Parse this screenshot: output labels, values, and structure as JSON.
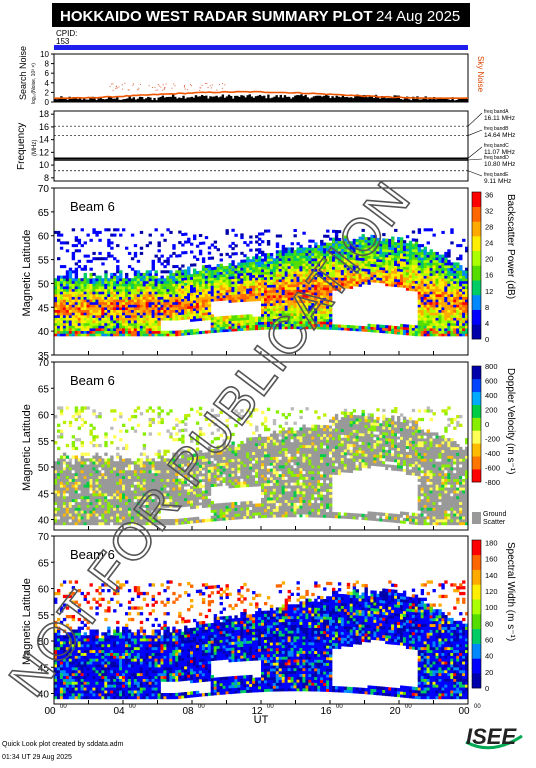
{
  "header": {
    "title": "HOKKAIDO WEST RADAR SUMMARY PLOT",
    "date": "24 Aug 2025",
    "cpid_label": "CPID:",
    "cpid_value": "153"
  },
  "noise_panel": {
    "ylabel": "Search Noise",
    "ylabel_sub": "log₁₀(Noise, 10³ ×)",
    "right_label": "Sky Noise",
    "yticks": [
      "0",
      "2",
      "4",
      "6",
      "8",
      "10"
    ]
  },
  "freq_panel": {
    "ylabel": "Frequency",
    "ylabel_sub": "(MHz)",
    "yticks": [
      "8",
      "10",
      "12",
      "14",
      "16",
      "18"
    ],
    "bands": [
      {
        "label": "freq bandA",
        "value": "16.11 MHz"
      },
      {
        "label": "freq bandB",
        "value": "14.64 MHz"
      },
      {
        "label": "freq bandC",
        "value": "11.07 MHz"
      },
      {
        "label": "freq bandD",
        "value": "10.80 MHz"
      },
      {
        "label": "freq bandE",
        "value": "9.11 MHz"
      }
    ]
  },
  "panels": [
    {
      "beam": "Beam  6",
      "ylabel": "Magnetic Latitude",
      "yticks": [
        "35",
        "40",
        "45",
        "50",
        "55",
        "60",
        "65",
        "70"
      ],
      "cbar_label": "Backscatter Power (dB)",
      "cbar_ticks": [
        "0",
        "4",
        "8",
        "12",
        "16",
        "20",
        "24",
        "28",
        "32",
        "36"
      ],
      "colors": [
        "#0000aa",
        "#0000ff",
        "#0088ff",
        "#00cc66",
        "#55dd00",
        "#aaff00",
        "#ffee00",
        "#ffaa00",
        "#ff6600",
        "#ff0000"
      ]
    },
    {
      "beam": "Beam  6",
      "ylabel": "Magnetic Latitude",
      "yticks": [
        "40",
        "45",
        "50",
        "55",
        "60",
        "65",
        "70"
      ],
      "cbar_label": "Doppler Velocity (m s⁻¹)",
      "cbar_ticks": [
        "-800",
        "-600",
        "-400",
        "-200",
        "0",
        "200",
        "400",
        "600",
        "800"
      ],
      "ground_label_1": "Ground",
      "ground_label_2": "Scatter",
      "colors": [
        "#ff0000",
        "#ff7700",
        "#ffbb00",
        "#ffff55",
        "#88ee00",
        "#00cc44",
        "#00aaff",
        "#0044ff",
        "#0000aa"
      ]
    },
    {
      "beam": "Beam  6",
      "ylabel": "Magnetic Latitude",
      "yticks": [
        "40",
        "45",
        "50",
        "55",
        "60",
        "65",
        "70"
      ],
      "cbar_label": "Spectral Width (m s⁻¹)",
      "cbar_ticks": [
        "0",
        "20",
        "40",
        "60",
        "80",
        "100",
        "120",
        "140",
        "160",
        "180"
      ],
      "colors": [
        "#0000aa",
        "#0000ff",
        "#0088ff",
        "#00cc66",
        "#55dd00",
        "#aaff00",
        "#ffee00",
        "#ffaa00",
        "#ff6600",
        "#ff0000"
      ]
    }
  ],
  "xaxis": {
    "label": "UT",
    "ticks": [
      {
        "h": "00",
        "m": "00"
      },
      {
        "h": "04",
        "m": "00"
      },
      {
        "h": "08",
        "m": "00"
      },
      {
        "h": "12",
        "m": "00"
      },
      {
        "h": "16",
        "m": "00"
      },
      {
        "h": "20",
        "m": "00"
      },
      {
        "h": "00",
        "m": "00"
      }
    ]
  },
  "watermark": "NOT FOR PUBLICATION",
  "footer": {
    "line1": "Quick Look plot created by sddata.adm",
    "line2": "01:34 UT 29 Aug 2025",
    "logo": "ISEE"
  },
  "chart_data": {
    "type": "heatmap",
    "title": "HOKKAIDO WEST RADAR SUMMARY PLOT",
    "xlabel": "UT",
    "xlim": [
      0,
      24
    ],
    "series": [
      {
        "name": "Backscatter Power (dB)",
        "ylim": [
          35,
          70
        ],
        "zlim": [
          0,
          36
        ]
      },
      {
        "name": "Doppler Velocity (m s⁻¹)",
        "ylim": [
          38,
          70
        ],
        "zlim": [
          -800,
          800
        ]
      },
      {
        "name": "Spectral Width (m s⁻¹)",
        "ylim": [
          38,
          70
        ],
        "zlim": [
          0,
          180
        ]
      }
    ],
    "frequency_bands_mhz": [
      16.11,
      14.64,
      11.07,
      10.8,
      9.11
    ]
  }
}
